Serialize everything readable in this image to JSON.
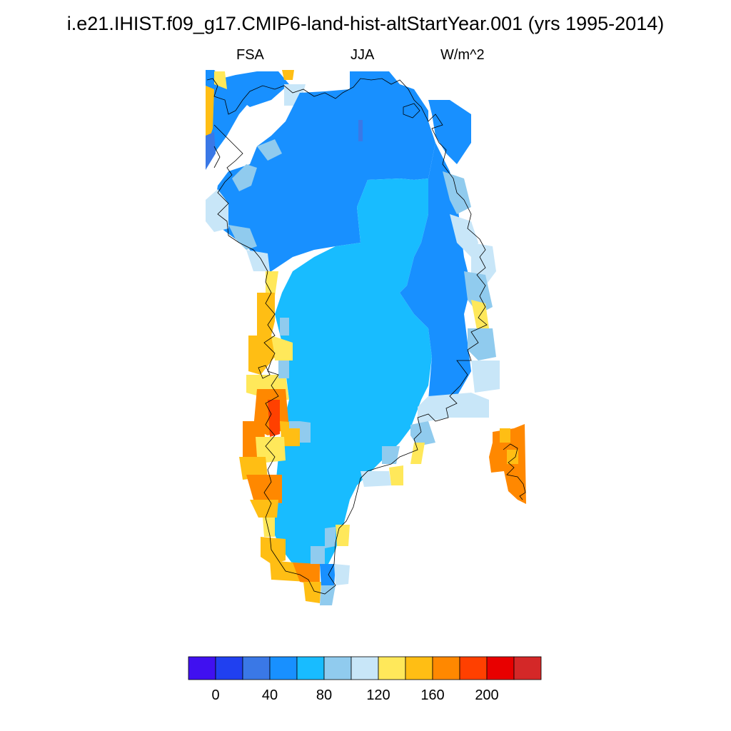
{
  "title": "i.e21.IHIST.f09_g17.CMIP6-land-hist-altStartYear.001 (yrs 1995-2014)",
  "subtitle_left": "FSA",
  "subtitle_center": "JJA",
  "subtitle_right": "W/m^2",
  "colorbar": {
    "colors": [
      "#4010f0",
      "#2040f0",
      "#3a78e6",
      "#1890ff",
      "#18bcff",
      "#90cbee",
      "#c8e6f8",
      "#ffe85a",
      "#ffbe14",
      "#ff8800",
      "#ff4000",
      "#e80000",
      "#d42828"
    ],
    "labels": [
      "0",
      "40",
      "80",
      "120",
      "160",
      "200"
    ]
  },
  "map_colors": {
    "deep_blue": "#1890ff",
    "light_blue": "#18bcff",
    "pale_blue": "#90cbee",
    "very_pale": "#c8e6f8",
    "yellow": "#ffe85a",
    "gold": "#ffbe14",
    "orange": "#ff8800",
    "red": "#ff4000"
  }
}
